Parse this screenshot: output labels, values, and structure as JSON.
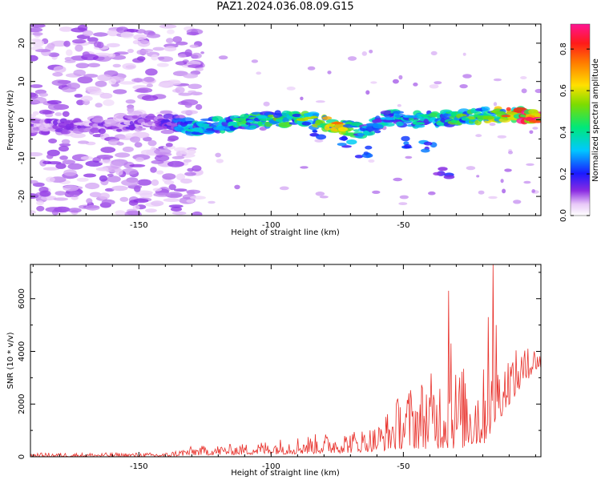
{
  "title": "PAZ1.2024.036.08.09.G15",
  "chart_data": [
    {
      "type": "heatmap",
      "title": "",
      "xlabel": "Height of straight line (km)",
      "ylabel": "Frequency (Hz)",
      "xlim": [
        -191,
        2
      ],
      "ylim": [
        -25,
        25
      ],
      "xticks": [
        -150,
        -100,
        -50
      ],
      "yticks": [
        -20,
        -10,
        0,
        10,
        20
      ],
      "colorbar": {
        "label": "Normalized spectral amplitude",
        "ticks": [
          0.0,
          0.2,
          0.4,
          0.6,
          0.8
        ],
        "range": [
          0,
          0.92
        ],
        "colormap": "rainbow (white/purple low, magenta high)"
      },
      "noise_region": {
        "x_from": -191,
        "x_to": -131,
        "freq_from": -25,
        "freq_to": 25,
        "amplitude": 0.1
      },
      "signal_ridge": [
        {
          "x": -191,
          "freq": -2,
          "amplitude": 0.12
        },
        {
          "x": -170,
          "freq": -1.5,
          "amplitude": 0.12
        },
        {
          "x": -140,
          "freq": -0.5,
          "amplitude": 0.15
        },
        {
          "x": -130,
          "freq": -2,
          "amplitude": 0.35
        },
        {
          "x": -115,
          "freq": -1,
          "amplitude": 0.4
        },
        {
          "x": -105,
          "freq": 0,
          "amplitude": 0.45
        },
        {
          "x": -95,
          "freq": 0.3,
          "amplitude": 0.5
        },
        {
          "x": -85,
          "freq": 0,
          "amplitude": 0.55
        },
        {
          "x": -75,
          "freq": -1.5,
          "amplitude": 0.7
        },
        {
          "x": -65,
          "freq": -3,
          "amplitude": 0.35
        },
        {
          "x": -55,
          "freq": 0.5,
          "amplitude": 0.4
        },
        {
          "x": -45,
          "freq": 0,
          "amplitude": 0.4
        },
        {
          "x": -35,
          "freq": 0.5,
          "amplitude": 0.45
        },
        {
          "x": -25,
          "freq": 0.5,
          "amplitude": 0.5
        },
        {
          "x": -15,
          "freq": 1.5,
          "amplitude": 0.6
        },
        {
          "x": -8,
          "freq": 1.5,
          "amplitude": 0.85
        },
        {
          "x": 0,
          "freq": 0.5,
          "amplitude": 0.92
        }
      ],
      "side_branch": [
        {
          "x": -82,
          "freq": -4,
          "amplitude": 0.3
        },
        {
          "x": -72,
          "freq": -6,
          "amplitude": 0.3
        },
        {
          "x": -65,
          "freq": -8.5,
          "amplitude": 0.25
        },
        {
          "x": -50,
          "freq": -6,
          "amplitude": 0.25
        },
        {
          "x": -40,
          "freq": -7,
          "amplitude": 0.3
        },
        {
          "x": -35,
          "freq": -14,
          "amplitude": 0.2
        }
      ]
    },
    {
      "type": "line",
      "title": "",
      "xlabel": "Height of straight line (km)",
      "ylabel": "SNR (10 * v/v)",
      "xlim": [
        -191,
        2
      ],
      "ylim": [
        0,
        7300
      ],
      "xticks": [
        -150,
        -100,
        -50
      ],
      "yticks": [
        0,
        2000,
        4000,
        6000
      ],
      "color": "#e8302a",
      "envelope": [
        {
          "x": -191,
          "low": 0,
          "high": 150
        },
        {
          "x": -140,
          "low": 0,
          "high": 150
        },
        {
          "x": -130,
          "low": 50,
          "high": 400
        },
        {
          "x": -110,
          "low": 80,
          "high": 500
        },
        {
          "x": -90,
          "low": 100,
          "high": 800
        },
        {
          "x": -70,
          "low": 150,
          "high": 1000
        },
        {
          "x": -60,
          "low": 200,
          "high": 1200
        },
        {
          "x": -50,
          "low": 300,
          "high": 2600
        },
        {
          "x": -40,
          "low": 300,
          "high": 3200
        },
        {
          "x": -30,
          "low": 300,
          "high": 3500
        },
        {
          "x": -20,
          "low": 400,
          "high": 3400
        },
        {
          "x": -10,
          "low": 2000,
          "high": 4000
        },
        {
          "x": 0,
          "low": 3300,
          "high": 4200
        }
      ],
      "peaks": [
        {
          "x": -33,
          "y": 6300
        },
        {
          "x": -32,
          "y": 4300
        },
        {
          "x": -18,
          "y": 5300
        },
        {
          "x": -16,
          "y": 7300
        },
        {
          "x": -15,
          "y": 5000
        },
        {
          "x": -3,
          "y": 4100
        }
      ]
    }
  ]
}
